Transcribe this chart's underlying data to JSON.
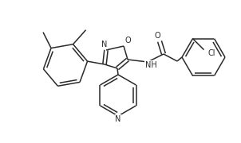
{
  "background": "#ffffff",
  "line_color": "#2a2a2a",
  "line_width": 1.1,
  "figsize": [
    3.02,
    1.8
  ],
  "dpi": 100,
  "xlim": [
    0,
    302
  ],
  "ylim": [
    0,
    180
  ]
}
